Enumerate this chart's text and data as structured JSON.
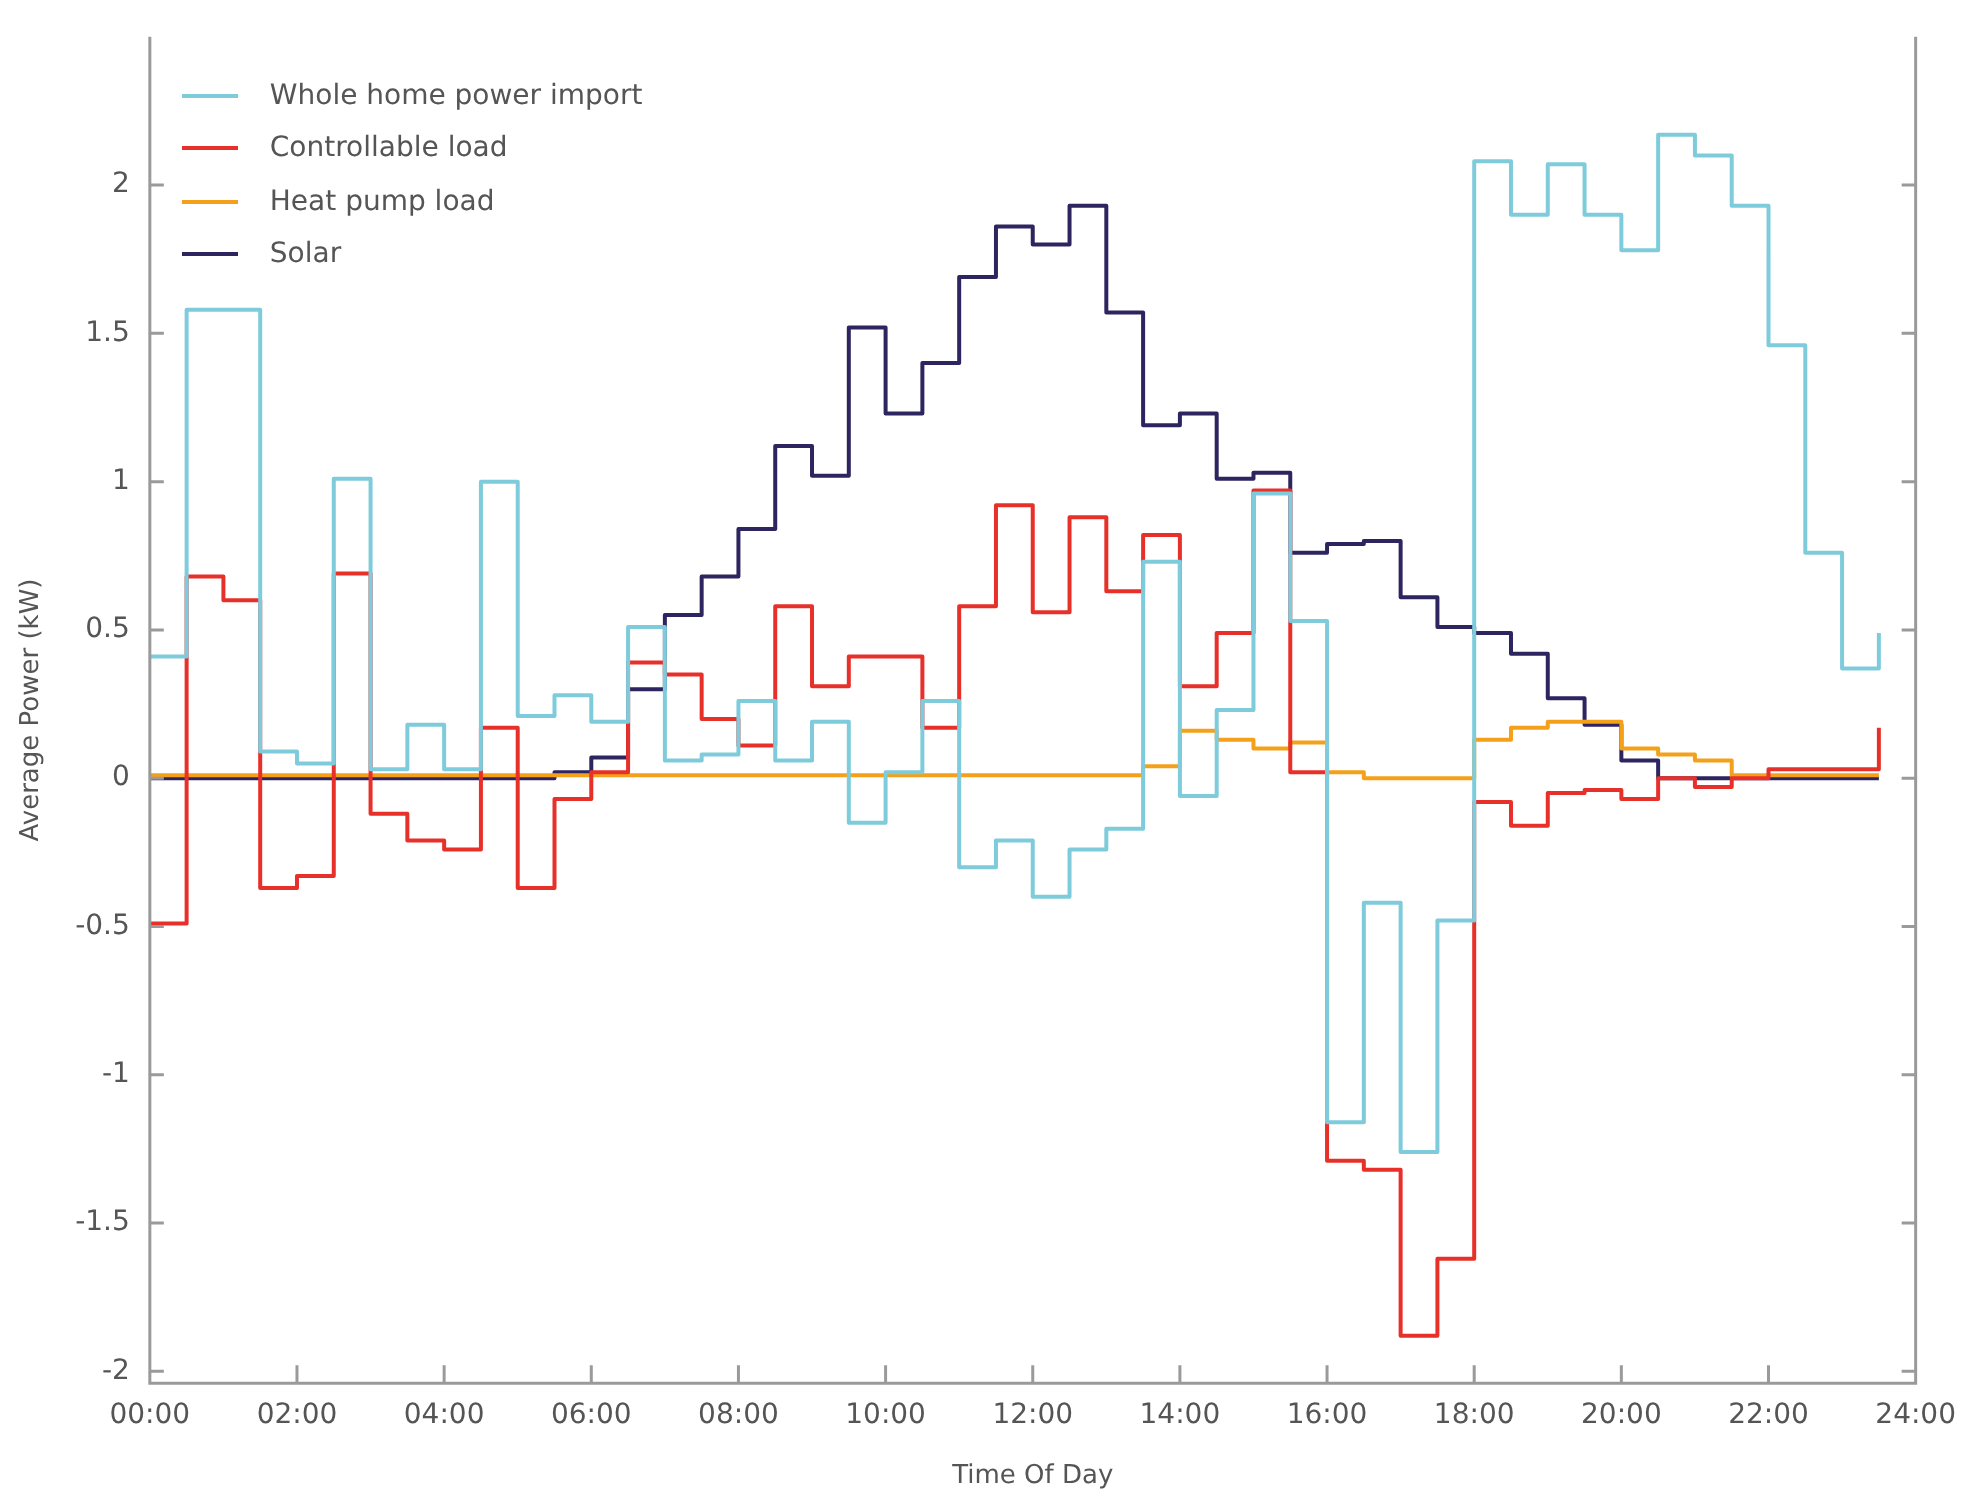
{
  "chart_data": {
    "type": "step",
    "xlabel": "Time Of Day",
    "ylabel": "Average Power (kW)",
    "x": [
      0,
      0.5,
      1,
      1.5,
      2,
      2.5,
      3,
      3.5,
      4,
      4.5,
      5,
      5.5,
      6,
      6.5,
      7,
      7.5,
      8,
      8.5,
      9,
      9.5,
      10,
      10.5,
      11,
      11.5,
      12,
      12.5,
      13,
      13.5,
      14,
      14.5,
      15,
      15.5,
      16,
      16.5,
      17,
      17.5,
      18,
      18.5,
      19,
      19.5,
      20,
      20.5,
      21,
      21.5,
      22,
      22.5,
      23,
      23.5
    ],
    "series": [
      {
        "name": "Whole home power import",
        "color": "#7ecbdb",
        "values": [
          0.41,
          1.58,
          1.58,
          0.09,
          0.05,
          1.01,
          0.03,
          0.18,
          0.03,
          1.0,
          0.21,
          0.28,
          0.19,
          0.51,
          0.06,
          0.08,
          0.26,
          0.06,
          0.19,
          -0.15,
          0.02,
          0.26,
          -0.3,
          -0.21,
          -0.4,
          -0.24,
          -0.17,
          0.73,
          -0.06,
          0.23,
          0.96,
          0.53,
          -1.16,
          -0.42,
          -1.26,
          -0.48,
          2.08,
          1.9,
          2.07,
          1.9,
          1.78,
          2.17,
          2.1,
          1.93,
          1.46,
          0.76,
          0.37,
          0.49
        ]
      },
      {
        "name": "Controllable load",
        "color": "#e8302a",
        "values": [
          -0.49,
          0.68,
          0.6,
          -0.37,
          -0.33,
          0.69,
          -0.12,
          -0.21,
          -0.24,
          0.17,
          -0.37,
          -0.07,
          0.02,
          0.39,
          0.35,
          0.2,
          0.11,
          0.58,
          0.31,
          0.41,
          0.41,
          0.17,
          0.58,
          0.92,
          0.56,
          0.88,
          0.63,
          0.82,
          0.31,
          0.49,
          0.97,
          0.02,
          -1.29,
          -1.32,
          -1.88,
          -1.62,
          -0.08,
          -0.16,
          -0.05,
          -0.04,
          -0.07,
          0,
          -0.03,
          0,
          0.03,
          0.03,
          0.03,
          0.17
        ]
      },
      {
        "name": "Heat pump load",
        "color": "#f5a01a",
        "values": [
          0.01,
          0.01,
          0.01,
          0.01,
          0.01,
          0.01,
          0.01,
          0.01,
          0.01,
          0.01,
          0.01,
          0.01,
          0.01,
          0.01,
          0.01,
          0.01,
          0.01,
          0.01,
          0.01,
          0.01,
          0.01,
          0.01,
          0.01,
          0.01,
          0.01,
          0.01,
          0.01,
          0.04,
          0.16,
          0.13,
          0.1,
          0.12,
          0.02,
          0,
          0,
          0,
          0.13,
          0.17,
          0.19,
          0.19,
          0.1,
          0.08,
          0.06,
          0.01,
          0.01,
          0.01,
          0.01,
          0.01
        ]
      },
      {
        "name": "Solar",
        "color": "#2d2560",
        "values": [
          0,
          0,
          0,
          0,
          0,
          0,
          0,
          0,
          0,
          0,
          0,
          0.02,
          0.07,
          0.3,
          0.55,
          0.68,
          0.84,
          1.12,
          1.02,
          1.52,
          1.23,
          1.4,
          1.69,
          1.86,
          1.8,
          1.93,
          1.57,
          1.19,
          1.23,
          1.01,
          1.03,
          0.76,
          0.79,
          0.8,
          0.61,
          0.51,
          0.49,
          0.42,
          0.27,
          0.18,
          0.06,
          0,
          0,
          0,
          0,
          0,
          0,
          0
        ]
      }
    ],
    "xlim": [
      0,
      24
    ],
    "xticks": [
      {
        "value": 0,
        "label": "00:00"
      },
      {
        "value": 2,
        "label": "02:00"
      },
      {
        "value": 4,
        "label": "04:00"
      },
      {
        "value": 6,
        "label": "06:00"
      },
      {
        "value": 8,
        "label": "08:00"
      },
      {
        "value": 10,
        "label": "10:00"
      },
      {
        "value": 12,
        "label": "12:00"
      },
      {
        "value": 14,
        "label": "14:00"
      },
      {
        "value": 16,
        "label": "16:00"
      },
      {
        "value": 18,
        "label": "18:00"
      },
      {
        "value": 20,
        "label": "20:00"
      },
      {
        "value": 22,
        "label": "22:00"
      },
      {
        "value": 24,
        "label": "24:00"
      }
    ],
    "ylim": [
      -2.04,
      2.5
    ],
    "yticks": [
      -2,
      -1.5,
      -1,
      -0.5,
      0,
      0.5,
      1,
      1.5,
      2
    ],
    "legend": "top left",
    "marker": "none",
    "line_style": "solid"
  }
}
